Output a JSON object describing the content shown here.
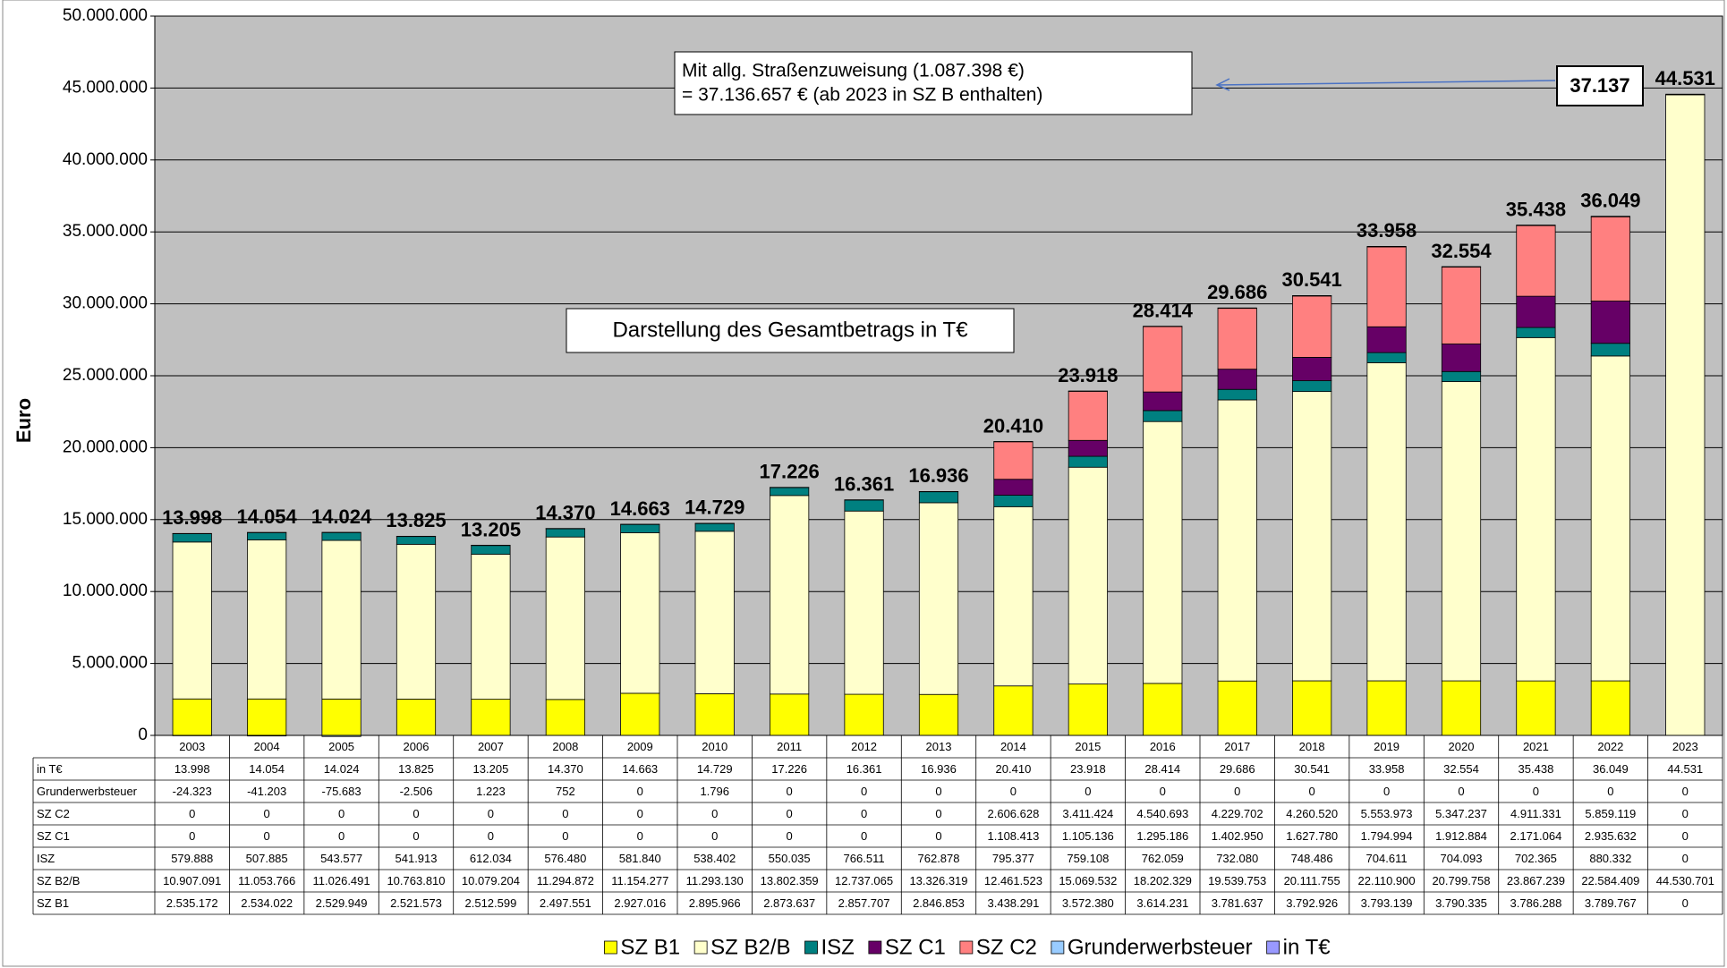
{
  "chart_data": {
    "type": "bar",
    "stacked": true,
    "y_label": "Euro",
    "annotations": [
      "Mit allg. Straßenzuweisung (1.087.398 €)",
      "= 37.136.657 € (ab 2023 in SZ B enthalten)",
      "37.137",
      "Darstellung des Gesamtbetrags  in T€"
    ],
    "categories": [
      "2003",
      "2004",
      "2005",
      "2006",
      "2007",
      "2008",
      "2009",
      "2010",
      "2011",
      "2012",
      "2013",
      "2014",
      "2015",
      "2016",
      "2017",
      "2018",
      "2019",
      "2020",
      "2021",
      "2022",
      "2023"
    ],
    "ylim": [
      0,
      50000000
    ],
    "yticks": [
      0,
      {
        "value": 5000000,
        "label": "5.000.000"
      },
      {
        "value": 10000000,
        "label": "10.000.000"
      },
      {
        "value": 15000000,
        "label": "15.000.000"
      },
      {
        "value": 20000000,
        "label": "20.000.000"
      },
      {
        "value": 25000000,
        "label": "25.000.000"
      },
      {
        "value": 30000000,
        "label": "30.000.000"
      },
      {
        "value": 35000000,
        "label": "35.000.000"
      },
      {
        "value": 40000000,
        "label": "40.000.000"
      },
      {
        "value": 45000000,
        "label": "45.000.000"
      },
      {
        "value": 50000000,
        "label": "50.000.000"
      }
    ],
    "grid": true,
    "legend": "bottom",
    "series": [
      {
        "name": "SZ B1",
        "color": "#ffff00",
        "values": [
          2535172,
          2534022,
          2529949,
          2521573,
          2512599,
          2497551,
          2927016,
          2895966,
          2873637,
          2857707,
          2846853,
          3438291,
          3572380,
          3614231,
          3781637,
          3792926,
          3793139,
          3790335,
          3786288,
          3789767,
          0
        ],
        "value_labels": [
          "2.535.172",
          "2.534.022",
          "2.529.949",
          "2.521.573",
          "2.512.599",
          "2.497.551",
          "2.927.016",
          "2.895.966",
          "2.873.637",
          "2.857.707",
          "2.846.853",
          "3.438.291",
          "3.572.380",
          "3.614.231",
          "3.781.637",
          "3.792.926",
          "3.793.139",
          "3.790.335",
          "3.786.288",
          "3.789.767",
          "0"
        ]
      },
      {
        "name": "SZ B2/B",
        "color": "#ffffcc",
        "values": [
          10907091,
          11053766,
          11026491,
          10763810,
          10079204,
          11294872,
          11154277,
          11293130,
          13802359,
          12737065,
          13326319,
          12461523,
          15069532,
          18202329,
          19539753,
          20111755,
          22110900,
          20799758,
          23867239,
          22584409,
          44530701
        ],
        "value_labels": [
          "10.907.091",
          "11.053.766",
          "11.026.491",
          "10.763.810",
          "10.079.204",
          "11.294.872",
          "11.154.277",
          "11.293.130",
          "13.802.359",
          "12.737.065",
          "13.326.319",
          "12.461.523",
          "15.069.532",
          "18.202.329",
          "19.539.753",
          "20.111.755",
          "22.110.900",
          "20.799.758",
          "23.867.239",
          "22.584.409",
          "44.530.701"
        ]
      },
      {
        "name": "ISZ",
        "color": "#008080",
        "values": [
          579888,
          507885,
          543577,
          541913,
          612034,
          576480,
          581840,
          538402,
          550035,
          766511,
          762878,
          795377,
          759108,
          762059,
          732080,
          748486,
          704611,
          704093,
          702365,
          880332,
          0
        ],
        "value_labels": [
          "579.888",
          "507.885",
          "543.577",
          "541.913",
          "612.034",
          "576.480",
          "581.840",
          "538.402",
          "550.035",
          "766.511",
          "762.878",
          "795.377",
          "759.108",
          "762.059",
          "732.080",
          "748.486",
          "704.611",
          "704.093",
          "702.365",
          "880.332",
          "0"
        ]
      },
      {
        "name": "SZ C1",
        "color": "#660066",
        "values": [
          0,
          0,
          0,
          0,
          0,
          0,
          0,
          0,
          0,
          0,
          0,
          1108413,
          1105136,
          1295186,
          1402950,
          1627780,
          1794994,
          1912884,
          2171064,
          2935632,
          0
        ],
        "value_labels": [
          "0",
          "0",
          "0",
          "0",
          "0",
          "0",
          "0",
          "0",
          "0",
          "0",
          "0",
          "1.108.413",
          "1.105.136",
          "1.295.186",
          "1.402.950",
          "1.627.780",
          "1.794.994",
          "1.912.884",
          "2.171.064",
          "2.935.632",
          "0"
        ]
      },
      {
        "name": "SZ C2",
        "color": "#ff8080",
        "values": [
          0,
          0,
          0,
          0,
          0,
          0,
          0,
          0,
          0,
          0,
          0,
          2606628,
          3411424,
          4540693,
          4229702,
          4260520,
          5553973,
          5347237,
          4911331,
          5859119,
          0
        ],
        "value_labels": [
          "0",
          "0",
          "0",
          "0",
          "0",
          "0",
          "0",
          "0",
          "0",
          "0",
          "0",
          "2.606.628",
          "3.411.424",
          "4.540.693",
          "4.229.702",
          "4.260.520",
          "5.553.973",
          "5.347.237",
          "4.911.331",
          "5.859.119",
          "0"
        ]
      },
      {
        "name": "Grunderwerbsteuer",
        "color": "#99ccff",
        "values": [
          -24323,
          -41203,
          -75683,
          -2506,
          1223,
          752,
          0,
          1796,
          0,
          0,
          0,
          0,
          0,
          0,
          0,
          0,
          0,
          0,
          0,
          0,
          0
        ],
        "value_labels": [
          "-24.323",
          "-41.203",
          "-75.683",
          "-2.506",
          "1.223",
          "752",
          "0",
          "1.796",
          "0",
          "0",
          "0",
          "0",
          "0",
          "0",
          "0",
          "0",
          "0",
          "0",
          "0",
          "0",
          "0"
        ]
      },
      {
        "name": "in T€",
        "color": "#9999ff",
        "values": [
          13998,
          14054,
          14024,
          13825,
          13205,
          14370,
          14663,
          14729,
          17226,
          16361,
          16936,
          20410,
          23918,
          28414,
          29686,
          30541,
          33958,
          32554,
          35438,
          36049,
          44531
        ],
        "value_labels": [
          "13.998",
          "14.054",
          "14.024",
          "13.825",
          "13.205",
          "14.370",
          "14.663",
          "14.729",
          "17.226",
          "16.361",
          "16.936",
          "20.410",
          "23.918",
          "28.414",
          "29.686",
          "30.541",
          "33.958",
          "32.554",
          "35.438",
          "36.049",
          "44.531"
        ]
      }
    ]
  }
}
